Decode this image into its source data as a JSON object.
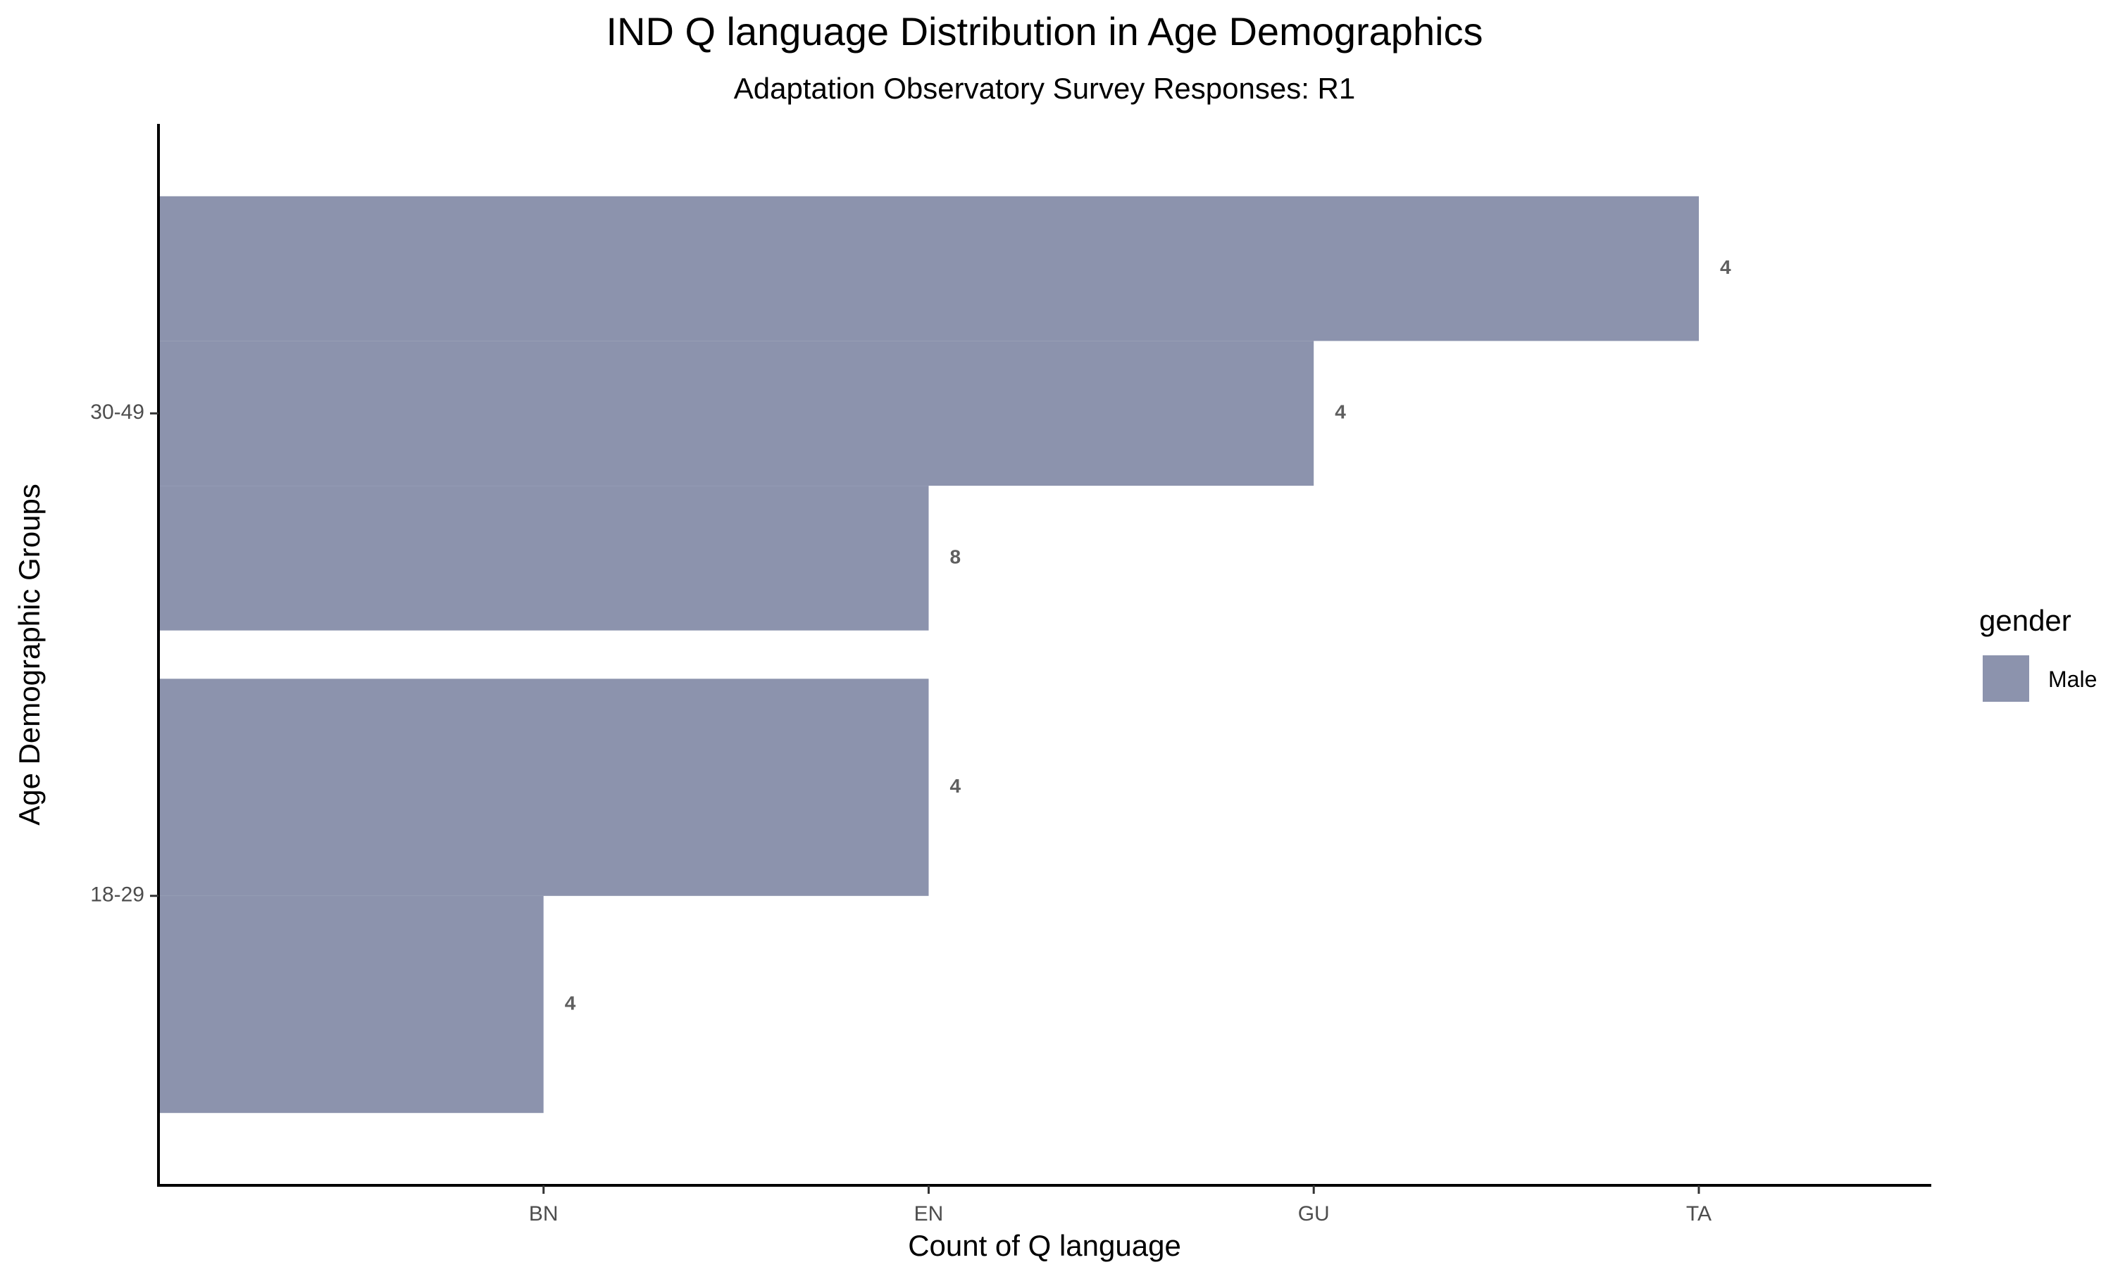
{
  "chart_data": {
    "type": "bar",
    "orientation": "horizontal",
    "title": "IND Q language Distribution in Age Demographics",
    "subtitle": "Adaptation Observatory Survey Responses: R1",
    "xlabel": "Count of Q language",
    "ylabel": "Age Demographic Groups",
    "x_ticks": [
      "BN",
      "EN",
      "GU",
      "TA"
    ],
    "categories": [
      "18-29",
      "30-49"
    ],
    "groups": [
      {
        "category": "18-29",
        "bars": [
          {
            "language": "BN",
            "label": "4"
          },
          {
            "language": "EN",
            "label": "4"
          }
        ]
      },
      {
        "category": "30-49",
        "bars": [
          {
            "language": "EN",
            "label": "8"
          },
          {
            "language": "GU",
            "label": "4"
          },
          {
            "language": "TA",
            "label": "4"
          }
        ]
      }
    ],
    "legend": {
      "title": "gender",
      "entries": [
        {
          "label": "Male",
          "color": "#8c93ad"
        }
      ],
      "position": "right"
    },
    "bar_color": "#8c93ad",
    "grid": false
  }
}
